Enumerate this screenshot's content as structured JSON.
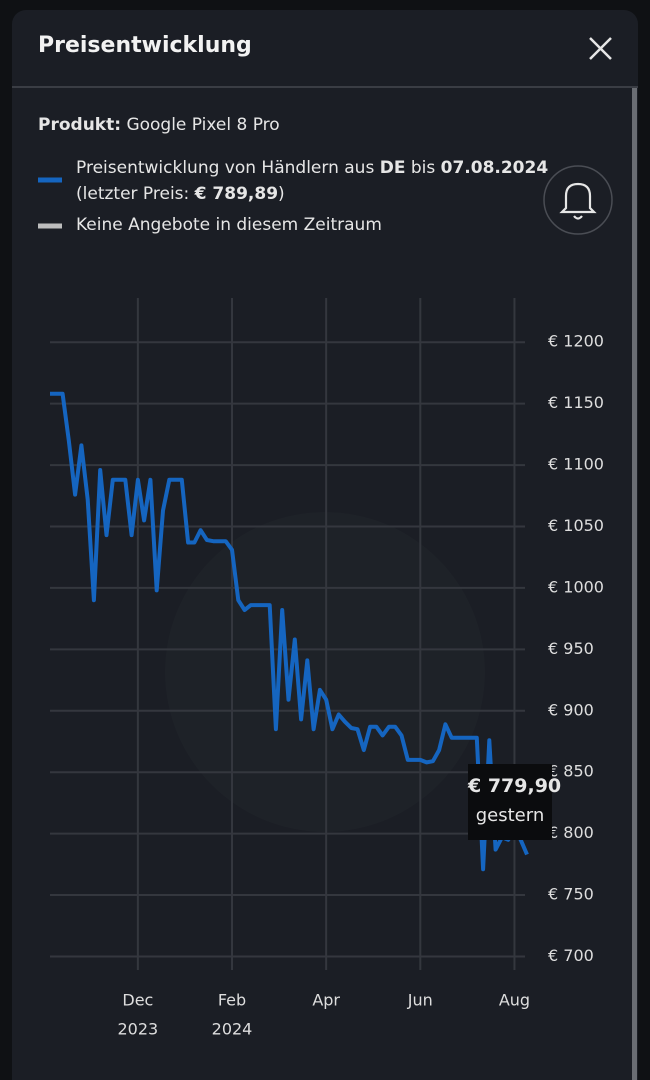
{
  "header": {
    "title": "Preisentwicklung"
  },
  "product": {
    "label": "Produkt:",
    "value": "Google Pixel 8 Pro"
  },
  "legend": [
    {
      "line1": [
        "Preisentwicklung von Händlern aus",
        "DE",
        "bis",
        "07.08.2024"
      ],
      "line2": [
        "(letzter Preis:",
        "€ 789,89",
        ")"
      ]
    },
    {
      "text": "Keine Angebote in diesem Zeitraum"
    }
  ],
  "tooltip": {
    "value": "€ 779,90",
    "label": "gestern"
  },
  "chart_data": {
    "type": "line",
    "categories": [
      null,
      null,
      null,
      null,
      null,
      null,
      null,
      null,
      null,
      null,
      null,
      null,
      null,
      null,
      [
        "Dec",
        "2023"
      ],
      null,
      null,
      null,
      null,
      null,
      null,
      null,
      null,
      null,
      null,
      null,
      null,
      null,
      null,
      [
        "Feb",
        "2024"
      ],
      null,
      null,
      null,
      null,
      null,
      null,
      null,
      null,
      null,
      null,
      null,
      null,
      null,
      null,
      [
        "Apr"
      ],
      null,
      null,
      null,
      null,
      null,
      null,
      null,
      null,
      null,
      null,
      null,
      null,
      null,
      null,
      [
        "Jun"
      ],
      null,
      null,
      null,
      null,
      null,
      null,
      null,
      null,
      null,
      null,
      null,
      null,
      null,
      null,
      [
        "Aug"
      ],
      null,
      null
    ],
    "series": [
      {
        "color": "#1565c0",
        "values": [
          1158,
          1158,
          1158,
          1120,
          1076,
          1116,
          1072,
          990,
          1096,
          1043,
          1088,
          1088,
          1088,
          1043,
          1088,
          1055,
          1088,
          998,
          1063,
          1088,
          1088,
          1088,
          1037,
          1037,
          1047,
          1039,
          1038,
          1038,
          1038,
          1031,
          990,
          982,
          986,
          986,
          986,
          986,
          885,
          982,
          909,
          958,
          893,
          941,
          885,
          917,
          909,
          885,
          897,
          891,
          886,
          885,
          868,
          887,
          887,
          880,
          887,
          887,
          880,
          860,
          860,
          860,
          858,
          859,
          868,
          889,
          878,
          878,
          878,
          878,
          878,
          771,
          876,
          787,
          797,
          795,
          803,
          795,
          783
        ]
      }
    ],
    "ylim": [
      689,
      1236
    ],
    "yticks": [
      {
        "value": 700,
        "label": "€ 700"
      },
      {
        "value": 750,
        "label": "€ 750"
      },
      {
        "value": 800,
        "label": "€ 800"
      },
      {
        "value": 850,
        "label": "€ 850"
      },
      {
        "value": 900,
        "label": "€ 900"
      },
      {
        "value": 950,
        "label": "€ 950"
      },
      {
        "value": 1000,
        "label": "€ 1000"
      },
      {
        "value": 1050,
        "label": "€ 1050"
      },
      {
        "value": 1100,
        "label": "€ 1100"
      },
      {
        "value": 1150,
        "label": "€ 1150"
      },
      {
        "value": 1200,
        "label": "€ 1200"
      }
    ],
    "grid": true
  }
}
